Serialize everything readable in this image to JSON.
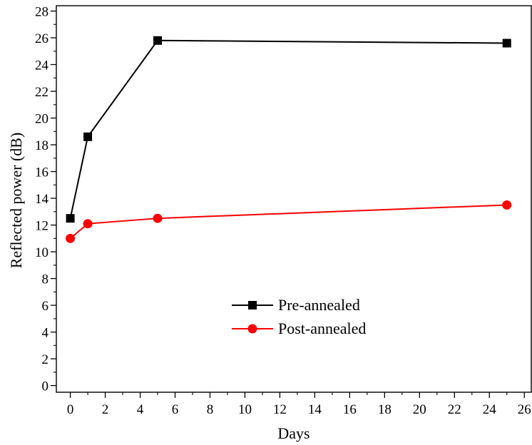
{
  "chart_data": {
    "type": "line",
    "title": "",
    "xlabel": "Days",
    "ylabel": "Reflected power (dB)",
    "xlim": [
      -0.8,
      26.4
    ],
    "ylim": [
      -0.5,
      28.4
    ],
    "x_ticks": [
      0,
      2,
      4,
      6,
      8,
      10,
      12,
      14,
      16,
      18,
      20,
      22,
      24,
      26
    ],
    "y_ticks": [
      0,
      2,
      4,
      6,
      8,
      10,
      12,
      14,
      16,
      18,
      20,
      22,
      24,
      26,
      28
    ],
    "grid": false,
    "legend_position": "center",
    "series": [
      {
        "name": "Pre-annealed",
        "color": "#000000",
        "marker": "square",
        "x": [
          0,
          1,
          5,
          25
        ],
        "y": [
          12.5,
          18.6,
          25.8,
          25.6
        ]
      },
      {
        "name": "Post-annealed",
        "color": "#ff0000",
        "marker": "circle",
        "x": [
          0,
          1,
          5,
          25
        ],
        "y": [
          11.0,
          12.1,
          12.5,
          13.5
        ]
      }
    ]
  }
}
